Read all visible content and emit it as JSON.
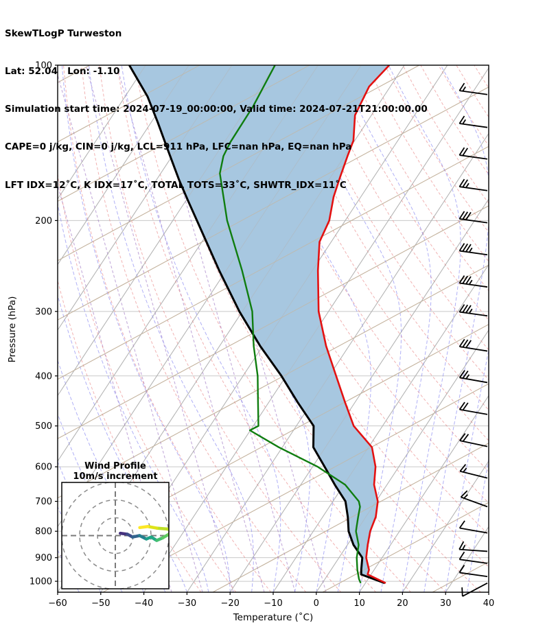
{
  "title_block": {
    "line1": "SkewTLogP Turweston",
    "line2": "Lat: 52.04   Lon: -1.10",
    "line3": "Simulation start time: 2024-07-19_00:00:00, Valid time: 2024-07-21T21:00:00.00",
    "line4": "CAPE=0 j/kg, CIN=0 j/kg, LCL=911 hPa, LFC=nan hPa, EQ=nan hPa",
    "line5": "LFT IDX=12˚C, K IDX=17˚C, TOTAL TOTS=33˚C, SHWTR_IDX=11˚C"
  },
  "axes": {
    "xlabel": "Temperature (˚C)",
    "ylabel": "Pressure (hPa)",
    "x_tick_values": [
      -60,
      -50,
      -40,
      -30,
      -20,
      -10,
      0,
      10,
      20,
      30,
      40
    ],
    "x_tick_labels": [
      "−60",
      "−50",
      "−40",
      "−30",
      "−20",
      "−10",
      "0",
      "10",
      "20",
      "30",
      "40"
    ],
    "y_tick_values": [
      100,
      200,
      300,
      400,
      500,
      600,
      700,
      800,
      900,
      1000
    ],
    "y_tick_labels": [
      "100",
      "200",
      "300",
      "400",
      "500",
      "600",
      "700",
      "800",
      "900",
      "1000"
    ]
  },
  "chart_data": {
    "type": "skewt_logp",
    "title": "SkewTLogP Turweston",
    "pressure_axis": {
      "scale": "log",
      "top_hPa": 100,
      "bottom_hPa": 1050,
      "gridlines": [
        100,
        200,
        300,
        400,
        500,
        600,
        700,
        800,
        900,
        1000
      ]
    },
    "temperature_axis": {
      "min_C": -60,
      "max_C": 40,
      "tick_step_C": 10,
      "skew": "isotherms lean right with height"
    },
    "series": {
      "temperature_C": [
        [
          100,
          -63.5
        ],
        [
          110,
          -64.9
        ],
        [
          125,
          -63.8
        ],
        [
          140,
          -60.3
        ],
        [
          150,
          -59.3
        ],
        [
          165,
          -57.8
        ],
        [
          180,
          -56.3
        ],
        [
          200,
          -53.7
        ],
        [
          220,
          -52.7
        ],
        [
          250,
          -48.7
        ],
        [
          300,
          -42.3
        ],
        [
          350,
          -35.3
        ],
        [
          400,
          -28.4
        ],
        [
          450,
          -22.3
        ],
        [
          500,
          -16.7
        ],
        [
          550,
          -9.2
        ],
        [
          600,
          -5.4
        ],
        [
          650,
          -3.0
        ],
        [
          700,
          0.4
        ],
        [
          750,
          2.3
        ],
        [
          800,
          3.2
        ],
        [
          850,
          4.7
        ],
        [
          900,
          6.3
        ],
        [
          950,
          8.8
        ],
        [
          970,
          9.2
        ],
        [
          1008,
          14.7
        ]
      ],
      "dewpoint_C": [
        [
          100,
          -90.0
        ],
        [
          120,
          -88.8
        ],
        [
          141,
          -88.6
        ],
        [
          150,
          -88.1
        ],
        [
          162,
          -86.3
        ],
        [
          200,
          -77.4
        ],
        [
          250,
          -66.3
        ],
        [
          300,
          -57.7
        ],
        [
          350,
          -52.1
        ],
        [
          400,
          -46.6
        ],
        [
          450,
          -42.5
        ],
        [
          500,
          -38.8
        ],
        [
          510,
          -40.1
        ],
        [
          550,
          -30.8
        ],
        [
          600,
          -18.8
        ],
        [
          650,
          -9.7
        ],
        [
          700,
          -4.0
        ],
        [
          717,
          -2.9
        ],
        [
          750,
          -1.8
        ],
        [
          782,
          -0.7
        ],
        [
          800,
          -0.1
        ],
        [
          850,
          2.6
        ],
        [
          900,
          4.1
        ],
        [
          950,
          6.1
        ],
        [
          990,
          7.9
        ],
        [
          1008,
          8.9
        ]
      ],
      "parcel_C": [
        [
          100,
          -123.8
        ],
        [
          115,
          -114.8
        ],
        [
          129,
          -108.5
        ],
        [
          146,
          -101.9
        ],
        [
          167,
          -94.7
        ],
        [
          184,
          -89.2
        ],
        [
          200,
          -84.4
        ],
        [
          250,
          -71.6
        ],
        [
          300,
          -60.7
        ],
        [
          350,
          -50.6
        ],
        [
          400,
          -41.1
        ],
        [
          450,
          -33.3
        ],
        [
          500,
          -26.0
        ],
        [
          550,
          -22.8
        ],
        [
          600,
          -17.2
        ],
        [
          650,
          -12.1
        ],
        [
          700,
          -7.1
        ],
        [
          750,
          -4.2
        ],
        [
          800,
          -1.8
        ],
        [
          850,
          1.4
        ],
        [
          900,
          5.4
        ],
        [
          950,
          7.0
        ],
        [
          970,
          7.7
        ],
        [
          1008,
          14.5
        ]
      ]
    },
    "shaded_area": {
      "between": [
        "parcel_C",
        "temperature_C"
      ],
      "meaning": "area between parcel path and environment temperature"
    },
    "legend_position": "none",
    "grid": "on"
  },
  "wind_barbs": {
    "units": "m/s",
    "full_barb_mps": 10,
    "half_barb_mps": 5,
    "levels": [
      {
        "p": 114,
        "speed": 15,
        "tilt": 8
      },
      {
        "p": 132,
        "speed": 15,
        "tilt": 8
      },
      {
        "p": 152,
        "speed": 20,
        "tilt": 8
      },
      {
        "p": 175,
        "speed": 25,
        "tilt": 8
      },
      {
        "p": 202,
        "speed": 30,
        "tilt": 8
      },
      {
        "p": 233,
        "speed": 35,
        "tilt": 8
      },
      {
        "p": 269,
        "speed": 35,
        "tilt": 8
      },
      {
        "p": 306,
        "speed": 35,
        "tilt": 8
      },
      {
        "p": 358,
        "speed": 30,
        "tilt": 9
      },
      {
        "p": 412,
        "speed": 25,
        "tilt": 10
      },
      {
        "p": 475,
        "speed": 20,
        "tilt": 10
      },
      {
        "p": 548,
        "speed": 20,
        "tilt": 12
      },
      {
        "p": 631,
        "speed": 15,
        "tilt": 14
      },
      {
        "p": 717,
        "speed": 15,
        "tilt": 20
      },
      {
        "p": 806,
        "speed": 10,
        "tilt": 10
      },
      {
        "p": 875,
        "speed": 15,
        "tilt": 4
      },
      {
        "p": 923,
        "speed": 10,
        "tilt": 8
      },
      {
        "p": 979,
        "speed": 10,
        "tilt": 8
      },
      {
        "p": 1008,
        "speed": 10,
        "tilt": -28
      }
    ]
  },
  "hodograph": {
    "title_line1": "Wind Profile",
    "title_line2": "10m/s increment",
    "ring_interval_mps": 10,
    "rings_mps": [
      10,
      20,
      30
    ],
    "trace_uv_mps": [
      {
        "u": 2.8,
        "v": 1.3,
        "c": "#440154"
      },
      {
        "u": 6.7,
        "v": 0.8,
        "c": "#46327e"
      },
      {
        "u": 9.7,
        "v": -0.8,
        "c": "#3e4c8a"
      },
      {
        "u": 13.6,
        "v": 0.0,
        "c": "#32648e"
      },
      {
        "u": 17.4,
        "v": -1.9,
        "c": "#277f8e"
      },
      {
        "u": 20.1,
        "v": -0.8,
        "c": "#1fa088"
      },
      {
        "u": 23.2,
        "v": -2.7,
        "c": "#22a884"
      },
      {
        "u": 26.7,
        "v": -1.2,
        "c": "#44bf70"
      },
      {
        "u": 29.9,
        "v": 0.7,
        "c": "#5ec962"
      },
      {
        "u": 34.0,
        "v": 2.2,
        "c": "#7ad151"
      },
      {
        "u": 29.1,
        "v": 3.7,
        "c": "#9bd93c"
      },
      {
        "u": 23.2,
        "v": 4.2,
        "c": "#bddf26"
      },
      {
        "u": 18.2,
        "v": 5.1,
        "c": "#dfe318"
      },
      {
        "u": 13.7,
        "v": 4.5,
        "c": "#fde725"
      }
    ]
  },
  "colors": {
    "temperature": "#e31111",
    "dewpoint": "#0f7d0f",
    "parcel": "#000000",
    "shade": "#a7c7e0",
    "isotherm": "#b3b3b3",
    "pressure_grid": "#c8c8c8",
    "dry_adiabat": "#e57373",
    "moist_adiabat": "#7b7bf0",
    "mixing_line": "#9467bd",
    "shallow_line": "#b3a79b",
    "axis": "#000000"
  }
}
